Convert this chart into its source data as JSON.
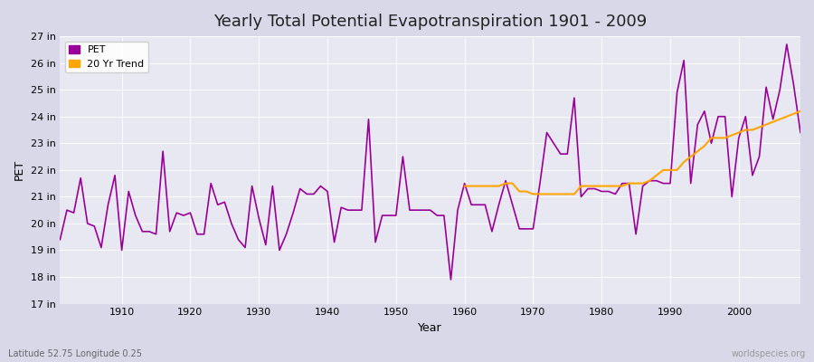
{
  "title": "Yearly Total Potential Evapotranspiration 1901 - 2009",
  "xlabel": "Year",
  "ylabel": "PET",
  "lat_lon_label": "Latitude 52.75 Longitude 0.25",
  "watermark": "worldspecies.org",
  "pet_color": "#990099",
  "trend_color": "#FFA500",
  "bg_color": "#e8e8f0",
  "plot_bg_color": "#f0f0f8",
  "grid_color": "#ffffff",
  "ylim": [
    17,
    27
  ],
  "ytick_labels": [
    "17 in",
    "18 in",
    "19 in",
    "20 in",
    "21 in",
    "22 in",
    "23 in",
    "24 in",
    "25 in",
    "26 in",
    "27 in"
  ],
  "ytick_values": [
    17,
    18,
    19,
    20,
    21,
    22,
    23,
    24,
    25,
    26,
    27
  ],
  "years": [
    1901,
    1902,
    1903,
    1904,
    1905,
    1906,
    1907,
    1908,
    1909,
    1910,
    1911,
    1912,
    1913,
    1914,
    1915,
    1916,
    1917,
    1918,
    1919,
    1920,
    1921,
    1922,
    1923,
    1924,
    1925,
    1926,
    1927,
    1928,
    1929,
    1930,
    1931,
    1932,
    1933,
    1934,
    1935,
    1936,
    1937,
    1938,
    1939,
    1940,
    1941,
    1942,
    1943,
    1944,
    1945,
    1946,
    1947,
    1948,
    1949,
    1950,
    1951,
    1952,
    1953,
    1954,
    1955,
    1956,
    1957,
    1958,
    1959,
    1960,
    1961,
    1962,
    1963,
    1964,
    1965,
    1966,
    1967,
    1968,
    1969,
    1970,
    1971,
    1972,
    1973,
    1974,
    1975,
    1976,
    1977,
    1978,
    1979,
    1980,
    1981,
    1982,
    1983,
    1984,
    1985,
    1986,
    1987,
    1988,
    1989,
    1990,
    1991,
    1992,
    1993,
    1994,
    1995,
    1996,
    1997,
    1998,
    1999,
    2000,
    2001,
    2002,
    2003,
    2004,
    2005,
    2006,
    2007,
    2008,
    2009
  ],
  "pet_values": [
    19.4,
    20.5,
    20.4,
    21.7,
    20.0,
    19.9,
    19.1,
    20.7,
    21.8,
    19.0,
    21.2,
    20.3,
    19.7,
    19.7,
    19.6,
    22.7,
    19.7,
    20.4,
    20.3,
    20.4,
    19.6,
    19.6,
    21.5,
    20.7,
    20.8,
    20.0,
    19.4,
    19.1,
    21.4,
    20.2,
    19.2,
    21.4,
    19.0,
    19.6,
    20.4,
    21.3,
    21.1,
    21.1,
    21.4,
    21.2,
    19.3,
    20.6,
    20.5,
    20.5,
    20.5,
    23.9,
    19.3,
    20.3,
    20.3,
    20.3,
    22.5,
    20.5,
    20.5,
    20.5,
    20.5,
    20.3,
    20.3,
    17.9,
    20.5,
    21.5,
    20.7,
    20.7,
    20.7,
    19.7,
    20.7,
    21.6,
    20.7,
    19.8,
    19.8,
    19.8,
    21.5,
    23.4,
    23.0,
    22.6,
    22.6,
    24.7,
    21.0,
    21.3,
    21.3,
    21.2,
    21.2,
    21.1,
    21.5,
    21.5,
    19.6,
    21.4,
    21.6,
    21.6,
    21.5,
    21.5,
    24.9,
    26.1,
    21.5,
    23.7,
    24.2,
    23.0,
    24.0,
    24.0,
    21.0,
    23.2,
    24.0,
    21.8,
    22.5,
    25.1,
    23.9,
    25.0,
    26.7,
    25.2,
    23.4
  ],
  "trend_years": [
    1960,
    1961,
    1962,
    1963,
    1964,
    1965,
    1966,
    1967,
    1968,
    1969,
    1970,
    1971,
    1972,
    1973,
    1974,
    1975,
    1976,
    1977,
    1978,
    1979,
    1980,
    1981,
    1982,
    1983,
    1984,
    1985,
    1986,
    1987,
    1988,
    1989,
    1990,
    1991,
    1992,
    1993,
    1994,
    1995,
    1996,
    1997,
    1998,
    1999,
    2000,
    2001,
    2002,
    2003,
    2004,
    2005,
    2006,
    2007,
    2008,
    2009
  ],
  "trend_values": [
    21.4,
    21.4,
    21.4,
    21.4,
    21.4,
    21.4,
    21.5,
    21.5,
    21.2,
    21.2,
    21.1,
    21.1,
    21.1,
    21.1,
    21.1,
    21.1,
    21.1,
    21.4,
    21.4,
    21.4,
    21.4,
    21.4,
    21.4,
    21.4,
    21.5,
    21.5,
    21.5,
    21.6,
    21.8,
    22.0,
    22.0,
    22.0,
    22.3,
    22.5,
    22.7,
    22.9,
    23.2,
    23.2,
    23.2,
    23.3,
    23.4,
    23.5,
    23.5,
    23.6,
    23.7,
    23.8,
    23.9,
    24.0,
    24.1,
    24.2
  ]
}
